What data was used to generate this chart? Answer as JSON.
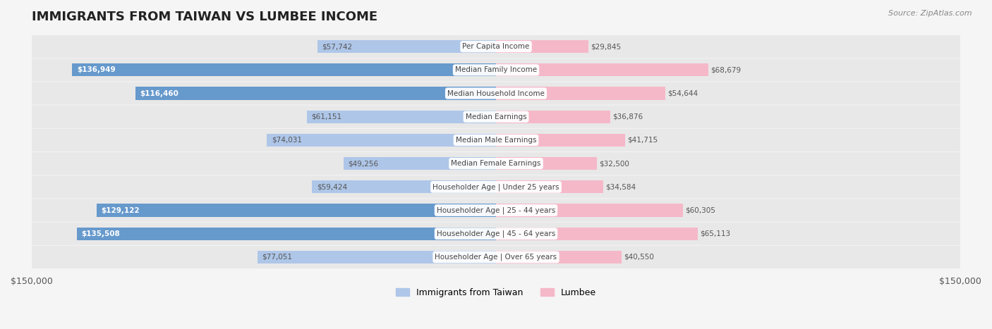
{
  "title": "IMMIGRANTS FROM TAIWAN VS LUMBEE INCOME",
  "source": "Source: ZipAtlas.com",
  "categories": [
    "Per Capita Income",
    "Median Family Income",
    "Median Household Income",
    "Median Earnings",
    "Median Male Earnings",
    "Median Female Earnings",
    "Householder Age | Under 25 years",
    "Householder Age | 25 - 44 years",
    "Householder Age | 45 - 64 years",
    "Householder Age | Over 65 years"
  ],
  "taiwan_values": [
    57742,
    136949,
    116460,
    61151,
    74031,
    49256,
    59424,
    129122,
    135508,
    77051
  ],
  "lumbee_values": [
    29845,
    68679,
    54644,
    36876,
    41715,
    32500,
    34584,
    60305,
    65113,
    40550
  ],
  "taiwan_color_strong": "#6699cc",
  "taiwan_color_light": "#aec6e8",
  "lumbee_color_strong": "#e8698a",
  "lumbee_color_light": "#f5b8c8",
  "background_color": "#f5f5f5",
  "row_bg_color": "#e8e8e8",
  "label_box_color": "#ffffff",
  "x_max": 150000,
  "legend_taiwan": "Immigrants from Taiwan",
  "legend_lumbee": "Lumbee"
}
